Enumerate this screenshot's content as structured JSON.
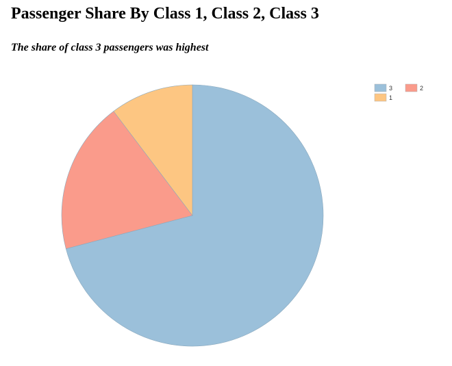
{
  "header": {
    "title": "Passenger Share By Class 1, Class 2, Class 3",
    "subtitle": "The share of class 3 passengers was highest"
  },
  "chart_data": {
    "type": "pie",
    "title": "Passenger Share By Class 1, Class 2, Class 3",
    "subtitle": "The share of class 3 passengers was highest",
    "slices": [
      {
        "label": "3",
        "value": 70.9,
        "color": "#9bc0da"
      },
      {
        "label": "2",
        "value": 18.8,
        "color": "#fa9b8b"
      },
      {
        "label": "1",
        "value": 10.3,
        "color": "#fdc682"
      }
    ],
    "legend": {
      "placement": "top-right",
      "entries": [
        "3",
        "2",
        "1"
      ]
    },
    "start_angle": "12 o'clock",
    "direction": "clockwise"
  }
}
